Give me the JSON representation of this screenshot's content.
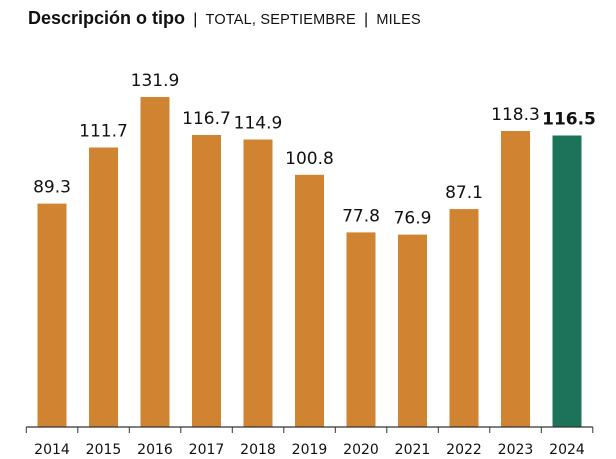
{
  "title": {
    "main": "Descripción o tipo",
    "separator_1": "|",
    "subtitle_1": "TOTAL, SEPTIEMBRE",
    "separator_2": "|",
    "subtitle_2": "MILES"
  },
  "chart_data": {
    "type": "bar",
    "categories": [
      "2014",
      "2015",
      "2016",
      "2017",
      "2018",
      "2019",
      "2020",
      "2021",
      "2022",
      "2023",
      "2024"
    ],
    "values": [
      89.3,
      111.7,
      131.9,
      116.7,
      114.9,
      100.8,
      77.8,
      76.9,
      87.1,
      118.3,
      116.5
    ],
    "data_labels": [
      "89.3",
      "111.7",
      "131.9",
      "116.7",
      "114.9",
      "100.8",
      "77.8",
      "76.9",
      "87.1",
      "118.3",
      "116.5"
    ],
    "highlight_index": 10,
    "ylim": [
      0,
      131.9
    ],
    "grid": false,
    "legend": "none",
    "colors": {
      "bar": "#D08330",
      "highlight": "#1C735A",
      "axis": "#333333",
      "text": "#111111"
    }
  }
}
